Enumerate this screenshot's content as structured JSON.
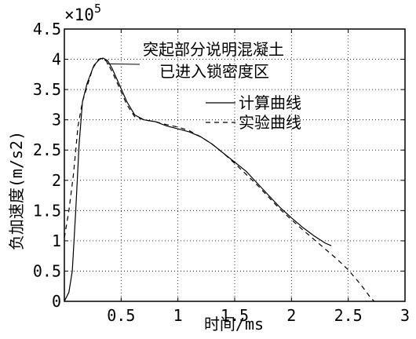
{
  "chart_data": {
    "type": "line",
    "title": "",
    "xlabel": "时间/ms",
    "ylabel": "负加速度(m/s2)",
    "y_exponent_label": "×10",
    "y_exponent_power": "5",
    "xlim": [
      0,
      3
    ],
    "ylim": [
      0,
      4.5
    ],
    "x_ticks": [
      0,
      0.5,
      1,
      1.5,
      2,
      2.5,
      3
    ],
    "x_tick_labels": [
      "",
      "0.5",
      "1",
      "1.5",
      "2",
      "2.5",
      "3"
    ],
    "y_ticks": [
      0,
      0.5,
      1,
      1.5,
      2,
      2.5,
      3,
      3.5,
      4,
      4.5
    ],
    "y_tick_labels": [
      "0",
      "0.5",
      "1",
      "1.5",
      "2",
      "2.5",
      "3",
      "3.5",
      "4",
      "4.5"
    ],
    "grid": "dotted",
    "legend_position": "right",
    "annotation": {
      "lines": [
        "突起部分说明混凝土",
        "已进入锁密度区"
      ],
      "points_to": [
        0.36,
        3.95
      ]
    },
    "series": [
      {
        "name": "计算曲线",
        "style": "solid",
        "points": [
          [
            0,
            0
          ],
          [
            0.04,
            0.15
          ],
          [
            0.07,
            0.5
          ],
          [
            0.1,
            1.5
          ],
          [
            0.13,
            2.6
          ],
          [
            0.16,
            3.3
          ],
          [
            0.2,
            3.6
          ],
          [
            0.26,
            3.9
          ],
          [
            0.31,
            4.0
          ],
          [
            0.34,
            4.02
          ],
          [
            0.38,
            3.98
          ],
          [
            0.42,
            3.85
          ],
          [
            0.48,
            3.6
          ],
          [
            0.55,
            3.3
          ],
          [
            0.62,
            3.08
          ],
          [
            0.7,
            3.0
          ],
          [
            0.8,
            2.97
          ],
          [
            0.9,
            2.9
          ],
          [
            1.0,
            2.85
          ],
          [
            1.1,
            2.8
          ],
          [
            1.2,
            2.72
          ],
          [
            1.3,
            2.6
          ],
          [
            1.4,
            2.45
          ],
          [
            1.5,
            2.3
          ],
          [
            1.6,
            2.15
          ],
          [
            1.7,
            1.95
          ],
          [
            1.8,
            1.75
          ],
          [
            1.9,
            1.55
          ],
          [
            2.0,
            1.38
          ],
          [
            2.1,
            1.22
          ],
          [
            2.2,
            1.08
          ],
          [
            2.3,
            0.96
          ],
          [
            2.35,
            0.92
          ]
        ]
      },
      {
        "name": "实验曲线",
        "style": "dashed",
        "points": [
          [
            0,
            1.05
          ],
          [
            0.04,
            1.5
          ],
          [
            0.08,
            2.1
          ],
          [
            0.12,
            2.9
          ],
          [
            0.16,
            3.3
          ],
          [
            0.2,
            3.55
          ],
          [
            0.25,
            3.85
          ],
          [
            0.3,
            4.0
          ],
          [
            0.33,
            4.02
          ],
          [
            0.37,
            3.97
          ],
          [
            0.42,
            3.8
          ],
          [
            0.48,
            3.55
          ],
          [
            0.55,
            3.25
          ],
          [
            0.62,
            3.05
          ],
          [
            0.7,
            3.0
          ],
          [
            0.8,
            2.97
          ],
          [
            0.9,
            2.92
          ],
          [
            1.0,
            2.88
          ],
          [
            1.1,
            2.82
          ],
          [
            1.2,
            2.72
          ],
          [
            1.3,
            2.6
          ],
          [
            1.4,
            2.45
          ],
          [
            1.5,
            2.28
          ],
          [
            1.6,
            2.1
          ],
          [
            1.7,
            1.92
          ],
          [
            1.8,
            1.72
          ],
          [
            1.9,
            1.52
          ],
          [
            2.0,
            1.35
          ],
          [
            2.1,
            1.18
          ],
          [
            2.2,
            1.02
          ],
          [
            2.3,
            0.86
          ],
          [
            2.4,
            0.7
          ],
          [
            2.5,
            0.52
          ],
          [
            2.6,
            0.3
          ],
          [
            2.65,
            0.18
          ],
          [
            2.7,
            0.05
          ],
          [
            2.73,
            0
          ]
        ]
      }
    ]
  }
}
